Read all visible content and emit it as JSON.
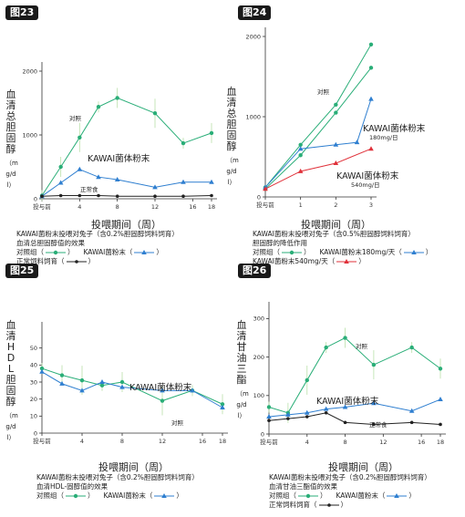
{
  "colors": {
    "control": "#2aae78",
    "kawai": "#2f7fd0",
    "normal": "#222222",
    "kawai540": "#e0313a",
    "errorbar": "#b9e0a8"
  },
  "common": {
    "xlabel": "投喂期间（周）",
    "xfirst": "投与前"
  },
  "panels": [
    {
      "badge": "图23",
      "ylabel": "血清总胆固醇",
      "yunit": "（mg/dl）",
      "annotations": {
        "control": "对照",
        "kawai": "KAWAI菌体粉末",
        "normal": "正常食"
      },
      "caption": {
        "line1": "KAWAI菌粉末投喂对兔子（含0.2%胆固醇饲料饲育）",
        "line2": "血清总胆固醇值的效果"
      },
      "legend": [
        {
          "label": "对照组（",
          "close": "）",
          "series": "control",
          "marker": "circle"
        },
        {
          "label": "KAWAI菌粉末（",
          "close": "）",
          "series": "kawai",
          "marker": "triangle"
        },
        {
          "label": "正常饲料饲育（",
          "close": "）",
          "series": "normal",
          "marker": "dot"
        }
      ],
      "chart_data": {
        "type": "line",
        "ylim": [
          0,
          2000
        ],
        "ytick_labels": [
          "2000",
          "1000",
          "0"
        ],
        "x_tick_labels": [
          "投与前",
          "4",
          "8",
          "12",
          "16",
          "18"
        ],
        "series": [
          {
            "key": "control",
            "x": [
              0,
              2,
              4,
              6,
              8,
              12,
              15,
              18
            ],
            "y": [
              50,
              500,
              960,
              1440,
              1580,
              1340,
              870,
              1030
            ]
          },
          {
            "key": "kawai",
            "x": [
              0,
              2,
              4,
              6,
              8,
              12,
              15,
              18
            ],
            "y": [
              40,
              250,
              460,
              340,
              300,
              180,
              260,
              260
            ]
          },
          {
            "key": "normal",
            "x": [
              0,
              2,
              4,
              6,
              8,
              12,
              15,
              18
            ],
            "y": [
              40,
              50,
              50,
              50,
              40,
              40,
              40,
              50
            ]
          }
        ]
      }
    },
    {
      "badge": "图24",
      "ylabel": "血清总胆固醇",
      "yunit": "（mg/dl）",
      "annotations": {
        "control": "对照",
        "kawai": "KAWAI菌体粉末",
        "kawai_dose": "180mg/日",
        "kawai540": "KAWAI菌体粉末",
        "kawai540_dose": "540mg/日"
      },
      "caption": {
        "line1": "KAWAI菌粉末投喂对兔子（含0.5%胆固醇饲料饲育）",
        "line2": "胆固醇的降低作用"
      },
      "legend": [
        {
          "label": "对照组（",
          "close": "）",
          "series": "control",
          "marker": "circle"
        },
        {
          "label": "KAWAI菌粉末180mg/天（",
          "close": "）",
          "series": "kawai",
          "marker": "triangle"
        },
        {
          "label": "KAWAI菌粉末540mg/天（",
          "close": "）",
          "series": "kawai540",
          "marker": "triangle"
        }
      ],
      "chart_data": {
        "type": "line",
        "ylim": [
          0,
          2000
        ],
        "ytick_labels": [
          "2000",
          "1000",
          "0"
        ],
        "x_tick_labels": [
          "投与前",
          "1",
          "2",
          "3"
        ],
        "series": [
          {
            "key": "control",
            "x": [
              0,
              1,
              2,
              3
            ],
            "y": [
              120,
              650,
              1150,
              1900
            ]
          },
          {
            "key": "control",
            "x": [
              0,
              1,
              2,
              3
            ],
            "y": [
              100,
              520,
              1050,
              1610
            ]
          },
          {
            "key": "kawai",
            "x": [
              0,
              1,
              2,
              2.6,
              3
            ],
            "y": [
              120,
              600,
              650,
              680,
              1220
            ]
          },
          {
            "key": "kawai540",
            "x": [
              0,
              1,
              2,
              3
            ],
            "y": [
              100,
              320,
              420,
              600
            ]
          }
        ]
      }
    },
    {
      "badge": "图25",
      "ylabel": "血清HDL胆固醇",
      "yunit": "（mg/dl）",
      "annotations": {
        "kawai": "KAWAI菌体粉末",
        "control": "对照"
      },
      "caption": {
        "line1": "KAWAI菌粉末投喂对兔子（含0.2%胆固醇饲料饲育）",
        "line2": "血清HDL-固醇值的效果"
      },
      "legend": [
        {
          "label": "对照组（",
          "close": "）",
          "series": "control",
          "marker": "circle"
        },
        {
          "label": "KAWAI菌粉末（",
          "close": "）",
          "series": "kawai",
          "marker": "triangle"
        }
      ],
      "chart_data": {
        "type": "line",
        "ylim": [
          0,
          60
        ],
        "ytick_labels": [
          "50",
          "40",
          "30",
          "20",
          "10",
          "0"
        ],
        "x_tick_labels": [
          "投与前",
          "4",
          "8",
          "12",
          "16",
          "18"
        ],
        "series": [
          {
            "key": "control",
            "x": [
              0,
              2,
              4,
              6,
              8,
              12,
              15,
              18
            ],
            "y": [
              38,
              34,
              31,
              28,
              30,
              19,
              25,
              17
            ]
          },
          {
            "key": "kawai",
            "x": [
              0,
              2,
              4,
              6,
              8,
              12,
              15,
              18
            ],
            "y": [
              36,
              29,
              25,
              30,
              27,
              25,
              25,
              15
            ]
          }
        ]
      }
    },
    {
      "badge": "图26",
      "ylabel": "血清甘油三酯",
      "yunit": "（mg/dl）",
      "annotations": {
        "control": "对照",
        "kawai": "KAWAI菌体粉末",
        "normal": "正常食"
      },
      "caption": {
        "line1": "KAWAI菌粉末投喂对兔子（含0.2%胆固醇饲料饲育）",
        "line2": "血清甘油三酯值的效果"
      },
      "legend": [
        {
          "label": "对照组（",
          "close": "）",
          "series": "control",
          "marker": "circle"
        },
        {
          "label": "KAWAI菌粉末（",
          "close": "）",
          "series": "kawai",
          "marker": "triangle"
        },
        {
          "label": "正常饲料饲育（",
          "close": "）",
          "series": "normal",
          "marker": "dot"
        }
      ],
      "chart_data": {
        "type": "line",
        "ylim": [
          0,
          320
        ],
        "ytick_labels": [
          "300",
          "200",
          "100",
          "0"
        ],
        "x_tick_labels": [
          "投与前",
          "4",
          "8",
          "12",
          "16",
          "18"
        ],
        "series": [
          {
            "key": "control",
            "x": [
              0,
              2,
              4,
              6,
              8,
              11,
              15,
              18
            ],
            "y": [
              70,
              55,
              140,
              225,
              250,
              180,
              225,
              170
            ]
          },
          {
            "key": "kawai",
            "x": [
              0,
              2,
              4,
              6,
              8,
              11,
              15,
              18
            ],
            "y": [
              45,
              50,
              55,
              65,
              70,
              80,
              60,
              90
            ]
          },
          {
            "key": "normal",
            "x": [
              0,
              2,
              4,
              6,
              8,
              11,
              15,
              18
            ],
            "y": [
              35,
              40,
              45,
              55,
              30,
              25,
              30,
              25
            ]
          }
        ]
      }
    }
  ]
}
